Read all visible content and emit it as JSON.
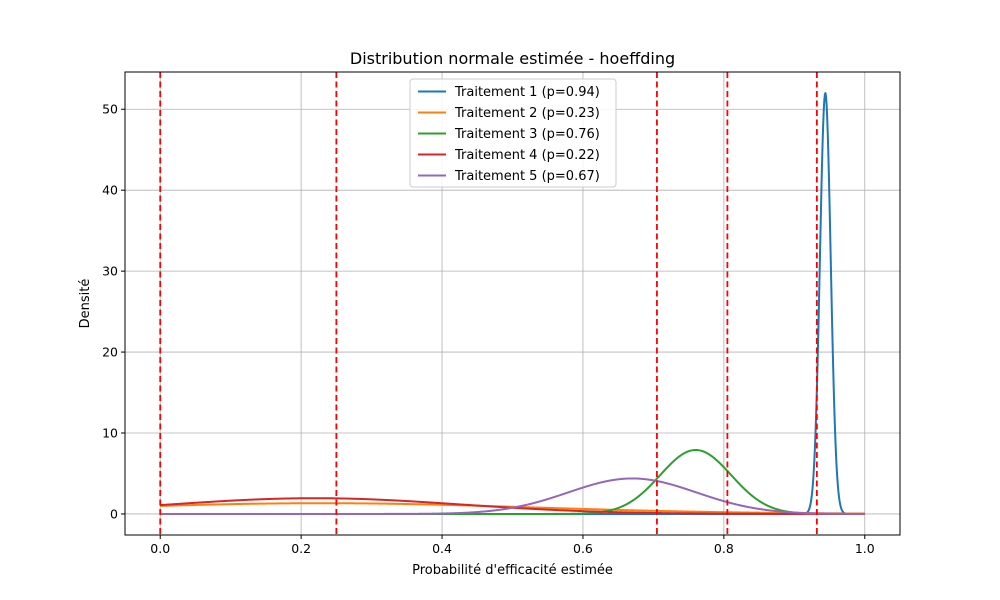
{
  "chart_data": {
    "type": "line",
    "title": "Distribution normale estimée - hoeffding",
    "xlabel": "Probabilité d'efficacité estimée",
    "ylabel": "Densité",
    "xlim": [
      -0.05,
      1.05
    ],
    "ylim": [
      -2.6,
      54.6
    ],
    "x_ticks": [
      0.0,
      0.2,
      0.4,
      0.6,
      0.8,
      1.0
    ],
    "x_tick_labels": [
      "0.0",
      "0.2",
      "0.4",
      "0.6",
      "0.8",
      "1.0"
    ],
    "y_ticks": [
      0,
      10,
      20,
      30,
      40,
      50
    ],
    "y_tick_labels": [
      "0",
      "10",
      "20",
      "30",
      "40",
      "50"
    ],
    "grid": true,
    "legend_position": "top-center",
    "x_range": [
      0.0,
      1.0
    ],
    "series": [
      {
        "name": "Traitement 1 (p=0.94)",
        "mean": 0.944,
        "std": 0.00767,
        "color": "#1f77b4"
      },
      {
        "name": "Traitement 2 (p=0.23)",
        "mean": 0.23,
        "std": 0.3,
        "color": "#ff7f0e"
      },
      {
        "name": "Traitement 3 (p=0.76)",
        "mean": 0.76,
        "std": 0.0505,
        "color": "#2ca02c"
      },
      {
        "name": "Traitement 4 (p=0.22)",
        "mean": 0.22,
        "std": 0.205,
        "color": "#d62728"
      },
      {
        "name": "Traitement 5 (p=0.67)",
        "mean": 0.67,
        "std": 0.091,
        "color": "#9467bd"
      }
    ],
    "vertical_lines": {
      "x": [
        0.0,
        0.25,
        0.705,
        0.805,
        0.932
      ],
      "color": "#ff0000",
      "style": "dashed"
    }
  }
}
